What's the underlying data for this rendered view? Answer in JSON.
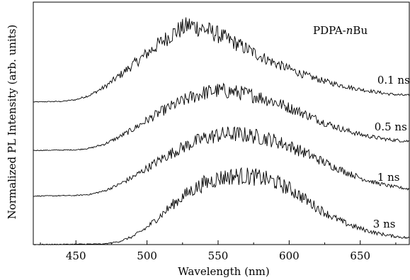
{
  "chart_data": {
    "type": "line",
    "title": "PDPA-nBu",
    "title_parts": [
      "PDPA-",
      "n",
      "Bu"
    ],
    "xlabel": "Wavelength (nm)",
    "ylabel": "Normalized PL Intensity (arb. units)",
    "xlim": [
      420,
      685
    ],
    "ylim": [
      0,
      4.25
    ],
    "x_ticks": [
      450,
      500,
      550,
      600,
      650
    ],
    "x_tick_labels": [
      "450",
      "500",
      "550",
      "600",
      "650"
    ],
    "grid": false,
    "legend": "none",
    "series": [
      {
        "name": "0.1 ns",
        "baseline": 2.5,
        "x": [
          420,
          440,
          450,
          460,
          470,
          480,
          490,
          500,
          510,
          520,
          530,
          540,
          550,
          560,
          570,
          580,
          590,
          600,
          610,
          620,
          630,
          640,
          650,
          660,
          670,
          685
        ],
        "y": [
          2.5,
          2.51,
          2.54,
          2.62,
          2.76,
          2.95,
          3.15,
          3.35,
          3.55,
          3.73,
          3.85,
          3.78,
          3.68,
          3.56,
          3.43,
          3.3,
          3.18,
          3.08,
          2.98,
          2.9,
          2.83,
          2.77,
          2.72,
          2.68,
          2.64,
          2.61
        ]
      },
      {
        "name": "0.5 ns",
        "baseline": 1.65,
        "x": [
          420,
          450,
          460,
          470,
          480,
          490,
          500,
          510,
          520,
          530,
          540,
          550,
          560,
          570,
          580,
          590,
          600,
          610,
          620,
          630,
          640,
          650,
          660,
          670,
          685
        ],
        "y": [
          1.65,
          1.66,
          1.69,
          1.76,
          1.88,
          2.02,
          2.18,
          2.33,
          2.46,
          2.57,
          2.66,
          2.7,
          2.68,
          2.64,
          2.58,
          2.5,
          2.4,
          2.3,
          2.19,
          2.09,
          2.0,
          1.93,
          1.88,
          1.84,
          1.81
        ]
      },
      {
        "name": "1 ns",
        "baseline": 0.85,
        "x": [
          420,
          450,
          460,
          470,
          480,
          490,
          500,
          510,
          520,
          530,
          540,
          550,
          560,
          570,
          580,
          590,
          600,
          610,
          620,
          630,
          640,
          650,
          660,
          670,
          685
        ],
        "y": [
          0.85,
          0.86,
          0.88,
          0.94,
          1.05,
          1.18,
          1.34,
          1.5,
          1.64,
          1.76,
          1.86,
          1.92,
          1.94,
          1.92,
          1.88,
          1.82,
          1.73,
          1.62,
          1.5,
          1.38,
          1.27,
          1.17,
          1.09,
          1.03,
          0.97
        ]
      },
      {
        "name": "3 ns",
        "baseline": 0.0,
        "x": [
          420,
          470,
          480,
          490,
          500,
          510,
          520,
          530,
          540,
          550,
          560,
          570,
          580,
          590,
          600,
          610,
          620,
          630,
          640,
          650,
          660,
          670,
          685
        ],
        "y": [
          0.0,
          0.01,
          0.05,
          0.14,
          0.3,
          0.52,
          0.74,
          0.93,
          1.07,
          1.16,
          1.2,
          1.2,
          1.17,
          1.1,
          0.98,
          0.82,
          0.64,
          0.49,
          0.37,
          0.28,
          0.21,
          0.16,
          0.11
        ]
      }
    ],
    "annotations": [
      {
        "text": "0.1 ns",
        "x": 662,
        "y": 2.82
      },
      {
        "text": "0.5 ns",
        "x": 660,
        "y": 2.0
      },
      {
        "text": "1 ns",
        "x": 662,
        "y": 1.12
      },
      {
        "text": "3 ns",
        "x": 659,
        "y": 0.3
      }
    ],
    "noise_amplitude": 0.07
  }
}
